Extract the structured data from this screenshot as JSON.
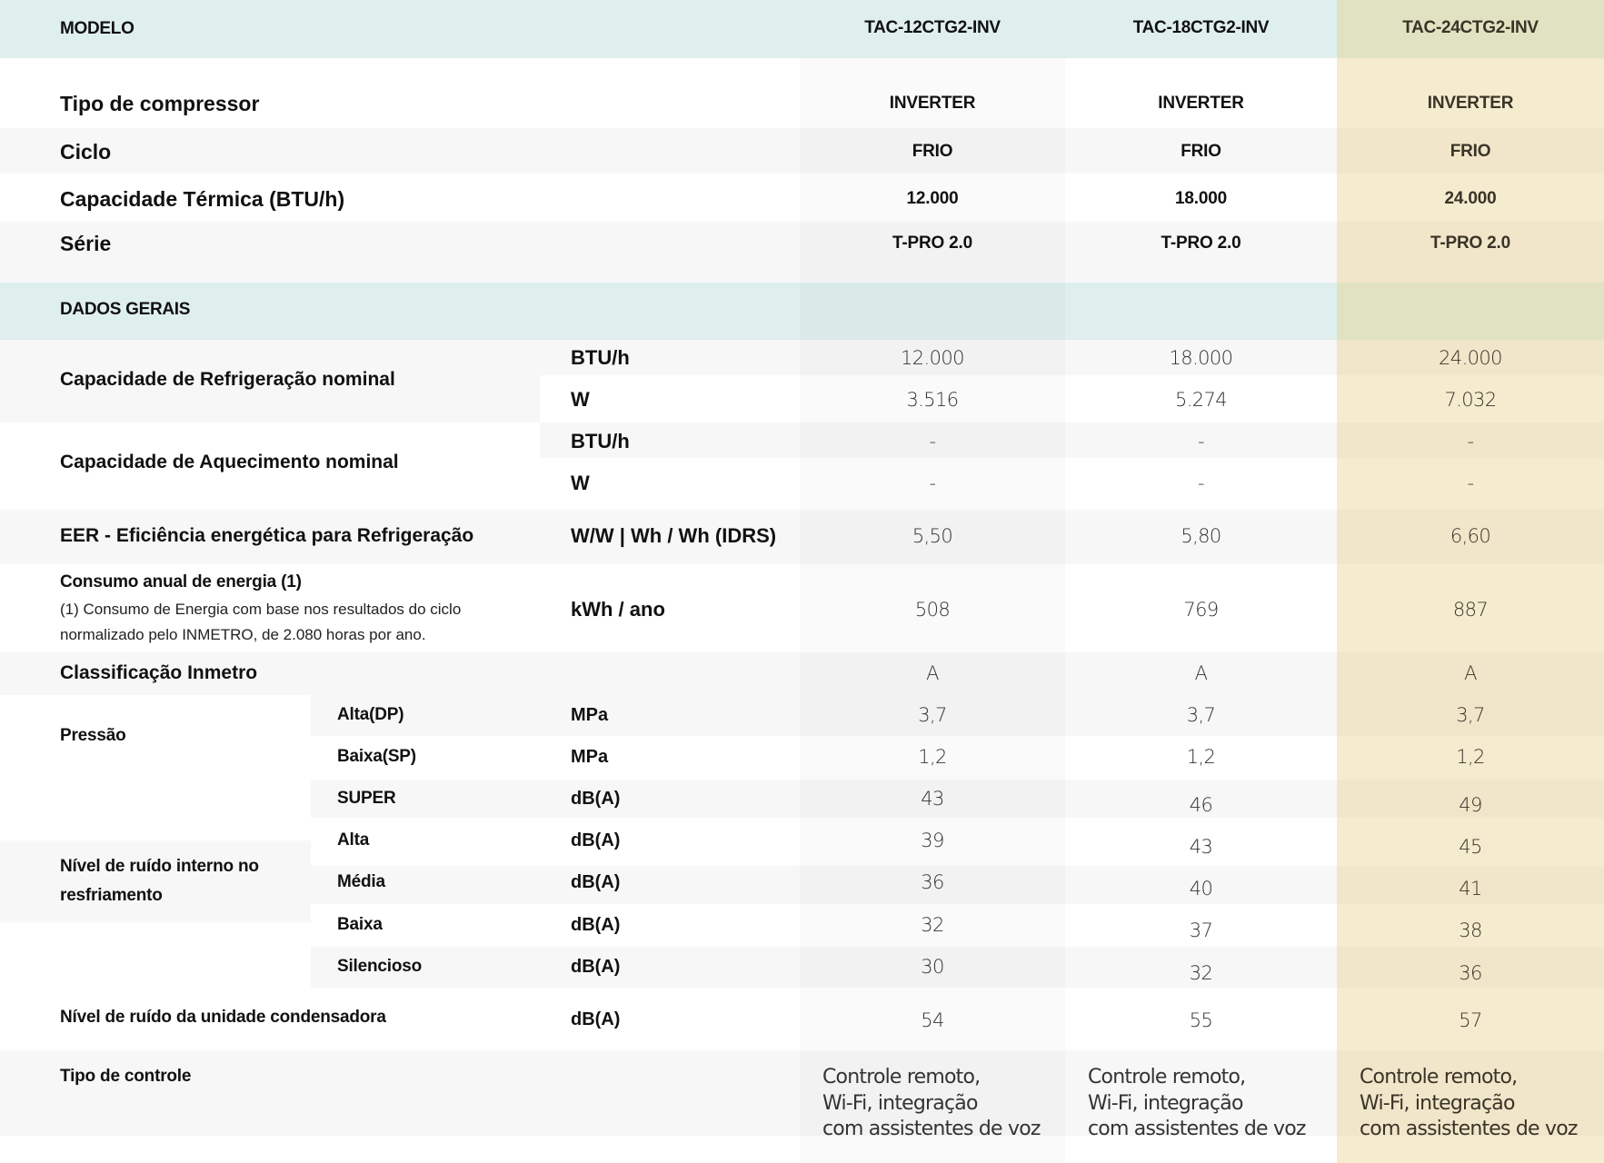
{
  "header": {
    "label": "MODELO",
    "models": [
      "TAC-12CTG2-INV",
      "TAC-18CTG2-INV",
      "TAC-24CTG2-INV"
    ]
  },
  "summary": [
    {
      "label": "Tipo de compressor",
      "values": [
        "INVERTER",
        "INVERTER",
        "INVERTER"
      ]
    },
    {
      "label": "Ciclo",
      "values": [
        "FRIO",
        "FRIO",
        "FRIO"
      ]
    },
    {
      "label": "Capacidade Térmica (BTU/h)",
      "values": [
        "12.000",
        "18.000",
        "24.000"
      ]
    },
    {
      "label": "Série",
      "values": [
        "T-PRO 2.0",
        "T-PRO 2.0",
        "T-PRO 2.0"
      ]
    }
  ],
  "section_title": "DADOS GERAIS",
  "specs": {
    "cooling_capacity": {
      "label": "Capacidade de Refrigeração nominal",
      "rows": [
        {
          "unit": "BTU/h",
          "values": [
            "12.000",
            "18.000",
            "24.000"
          ]
        },
        {
          "unit": "W",
          "values": [
            "3.516",
            "5.274",
            "7.032"
          ]
        }
      ]
    },
    "heating_capacity": {
      "label": "Capacidade de Aquecimento nominal",
      "rows": [
        {
          "unit": "BTU/h",
          "values": [
            "-",
            "-",
            "-"
          ]
        },
        {
          "unit": "W",
          "values": [
            "-",
            "-",
            "-"
          ]
        }
      ]
    },
    "eer": {
      "label": "EER - Eficiência energética para Refrigeração",
      "unit": "W/W | Wh / Wh (IDRS)",
      "values": [
        "5,50",
        "5,80",
        "6,60"
      ]
    },
    "annual_consumption": {
      "label": "Consumo anual de energia (1)",
      "note_line1": "(1) Consumo de Energia com base nos resultados do ciclo",
      "note_line2": "normalizado pelo INMETRO, de 2.080 horas por ano.",
      "unit": "kWh / ano",
      "values": [
        "508",
        "769",
        "887"
      ]
    },
    "inmetro": {
      "label": "Classificação Inmetro",
      "values": [
        "A",
        "A",
        "A"
      ]
    },
    "pressure": {
      "label": "Pressão",
      "rows": [
        {
          "sub": "Alta(DP)",
          "unit": "MPa",
          "values": [
            "3,7",
            "3,7",
            "3,7"
          ]
        },
        {
          "sub": "Baixa(SP)",
          "unit": "MPa",
          "values": [
            "1,2",
            "1,2",
            "1,2"
          ]
        }
      ]
    },
    "indoor_noise": {
      "label_line1": "Nível de ruído interno no",
      "label_line2": "resfriamento",
      "rows": [
        {
          "sub": "SUPER",
          "unit": "dB(A)",
          "values": [
            "43",
            "46",
            "49"
          ]
        },
        {
          "sub": "Alta",
          "unit": "dB(A)",
          "values": [
            "39",
            "43",
            "45"
          ]
        },
        {
          "sub": "Média",
          "unit": "dB(A)",
          "values": [
            "36",
            "40",
            "41"
          ]
        },
        {
          "sub": "Baixa",
          "unit": "dB(A)",
          "values": [
            "32",
            "37",
            "38"
          ]
        },
        {
          "sub": "Silencioso",
          "unit": "dB(A)",
          "values": [
            "30",
            "32",
            "36"
          ]
        }
      ]
    },
    "outdoor_noise": {
      "label": "Nível de ruído da unidade condensadora",
      "unit": "dB(A)",
      "values": [
        "54",
        "55",
        "57"
      ]
    },
    "control": {
      "label": "Tipo de controle",
      "values": [
        [
          "Controle remoto,",
          "Wi-Fi, integração",
          "com assistentes de voz"
        ],
        [
          "Controle remoto,",
          "Wi-Fi, integração",
          "com assistentes de voz"
        ],
        [
          "Controle remoto,",
          "Wi-Fi, integração",
          "com assistentes de voz"
        ]
      ]
    }
  }
}
